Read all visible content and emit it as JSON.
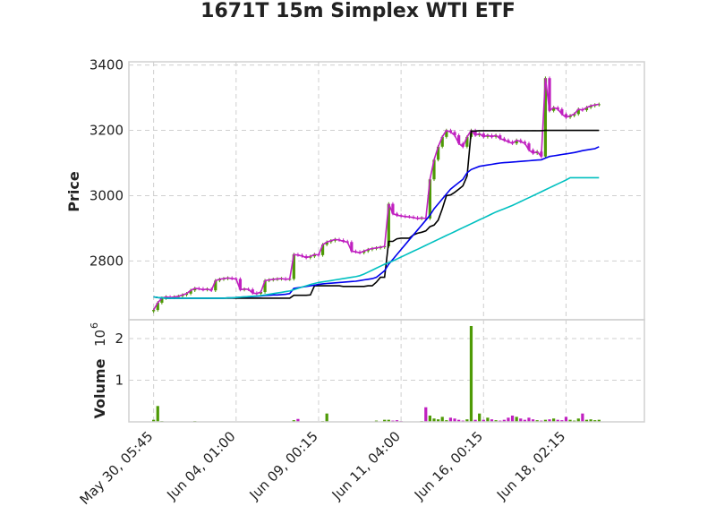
{
  "chart_data": {
    "type": "candlestick",
    "title": "1671T 15m Simplex WTI ETF",
    "price_axis": {
      "label": "Price",
      "ylim": [
        2620,
        3410
      ],
      "ticks": [
        2800,
        3000,
        3200,
        3400
      ],
      "tick_labels": [
        "2800",
        "3000",
        "3200",
        "3400"
      ]
    },
    "volume_axis": {
      "label": "Volume",
      "multiplier_label": "10",
      "multiplier_exponent": "6",
      "ylim": [
        0,
        2.45
      ],
      "ticks": [
        1,
        2
      ],
      "tick_labels": [
        "1",
        "2"
      ]
    },
    "x_ticks": [
      {
        "label": "May 30, 05:45",
        "index": 0
      },
      {
        "label": "Jun 04, 01:00",
        "index": 20
      },
      {
        "label": "Jun 09, 00:15",
        "index": 40
      },
      {
        "label": "Jun 11, 04:00",
        "index": 60
      },
      {
        "label": "Jun 16, 00:15",
        "index": 80
      },
      {
        "label": "Jun 18, 02:15",
        "index": 100
      }
    ],
    "x_range": [
      -6,
      119
    ],
    "close": [
      2650,
      2672,
      2686,
      2690,
      2688,
      2690,
      2692,
      2696,
      2700,
      2710,
      2716,
      2715,
      2712,
      2714,
      2710,
      2740,
      2744,
      2746,
      2748,
      2746,
      2745,
      2712,
      2714,
      2713,
      2702,
      2700,
      2705,
      2740,
      2742,
      2744,
      2745,
      2746,
      2744,
      2745,
      2820,
      2818,
      2815,
      2810,
      2814,
      2820,
      2818,
      2850,
      2858,
      2862,
      2866,
      2864,
      2860,
      2858,
      2830,
      2828,
      2825,
      2830,
      2835,
      2838,
      2840,
      2842,
      2845,
      2975,
      2945,
      2940,
      2938,
      2936,
      2935,
      2933,
      2930,
      2932,
      2930,
      3050,
      3110,
      3150,
      3180,
      3200,
      3195,
      3185,
      3160,
      3150,
      3180,
      3200,
      3185,
      3190,
      3180,
      3185,
      3180,
      3185,
      3175,
      3170,
      3165,
      3160,
      3170,
      3165,
      3160,
      3140,
      3130,
      3135,
      3120,
      3360,
      3260,
      3270,
      3265,
      3250,
      3240,
      3245,
      3250,
      3265,
      3262,
      3270,
      3275,
      3278,
      3280
    ],
    "volume": [
      0.05,
      0.38,
      0.02,
      0,
      0,
      0,
      0,
      0,
      0,
      0.01,
      0.02,
      0,
      0,
      0,
      0,
      0,
      0,
      0,
      0,
      0,
      0,
      0,
      0,
      0,
      0,
      0,
      0,
      0,
      0,
      0,
      0,
      0,
      0,
      0,
      0.04,
      0.07,
      0,
      0,
      0,
      0,
      0,
      0.02,
      0.2,
      0,
      0,
      0,
      0,
      0,
      0,
      0,
      0,
      0,
      0,
      0,
      0.03,
      0,
      0.05,
      0.05,
      0.03,
      0.04,
      0.02,
      0,
      0,
      0,
      0,
      0.02,
      0.35,
      0.15,
      0.08,
      0.06,
      0.12,
      0.04,
      0.1,
      0.08,
      0.05,
      0.03,
      0.06,
      2.3,
      0.05,
      0.2,
      0.05,
      0.1,
      0.06,
      0.04,
      0.03,
      0.05,
      0.1,
      0.15,
      0.12,
      0.08,
      0.05,
      0.1,
      0.06,
      0.04,
      0.03,
      0.05,
      0.06,
      0.08,
      0.05,
      0.04,
      0.12,
      0.05,
      0.03,
      0.08,
      0.2,
      0.05,
      0.06,
      0.04,
      0.05
    ],
    "moving_averages": [
      {
        "color": "#000000",
        "values": [
          2690,
          2688,
          2687,
          2686,
          2686,
          2686,
          2686,
          2686,
          2686,
          2686,
          2686,
          2686,
          2686,
          2686,
          2686,
          2686,
          2686,
          2686,
          2686,
          2686,
          2686,
          2686,
          2686,
          2686,
          2686,
          2686,
          2686,
          2686,
          2686,
          2686,
          2686,
          2686,
          2686,
          2686,
          2695,
          2695,
          2695,
          2695,
          2696,
          2724,
          2724,
          2724,
          2724,
          2724,
          2724,
          2724,
          2722,
          2722,
          2722,
          2722,
          2722,
          2722,
          2724,
          2724,
          2735,
          2750,
          2750,
          2860,
          2860,
          2868,
          2870,
          2870,
          2870,
          2880,
          2885,
          2888,
          2892,
          2905,
          2910,
          2925,
          2960,
          3000,
          3002,
          3010,
          3020,
          3030,
          3060,
          3198,
          3198,
          3199,
          3199,
          3199,
          3199,
          3199,
          3199,
          3199,
          3199,
          3199,
          3199,
          3199,
          3199,
          3199,
          3199,
          3199,
          3199,
          3200,
          3200,
          3200,
          3200,
          3200,
          3200,
          3200,
          3200,
          3200,
          3200,
          3200,
          3200,
          3200,
          3200
        ]
      },
      {
        "color": "#0000ee",
        "values": [
          2690,
          2688,
          2687,
          2686,
          2686,
          2686,
          2686,
          2686,
          2686,
          2686,
          2686,
          2686,
          2686,
          2686,
          2686,
          2686,
          2686,
          2686,
          2687,
          2687,
          2688,
          2689,
          2690,
          2690,
          2691,
          2692,
          2693,
          2694,
          2695,
          2696,
          2696,
          2697,
          2698,
          2700,
          2716,
          2718,
          2720,
          2722,
          2724,
          2726,
          2728,
          2730,
          2731,
          2732,
          2733,
          2734,
          2735,
          2736,
          2737,
          2738,
          2740,
          2742,
          2744,
          2746,
          2750,
          2760,
          2770,
          2790,
          2805,
          2820,
          2835,
          2850,
          2865,
          2880,
          2895,
          2910,
          2925,
          2940,
          2960,
          2975,
          2990,
          3005,
          3020,
          3030,
          3040,
          3050,
          3070,
          3080,
          3085,
          3090,
          3092,
          3094,
          3096,
          3098,
          3100,
          3101,
          3102,
          3103,
          3104,
          3105,
          3106,
          3107,
          3108,
          3109,
          3110,
          3115,
          3120,
          3122,
          3124,
          3126,
          3128,
          3130,
          3132,
          3135,
          3138,
          3140,
          3142,
          3144,
          3150
        ]
      },
      {
        "color": "#00c0c0",
        "values": [
          2690,
          2688,
          2687,
          2686,
          2686,
          2686,
          2686,
          2686,
          2686,
          2686,
          2686,
          2686,
          2686,
          2686,
          2686,
          2686,
          2686,
          2686,
          2687,
          2687,
          2688,
          2689,
          2690,
          2691,
          2692,
          2693,
          2694,
          2696,
          2698,
          2700,
          2702,
          2704,
          2706,
          2708,
          2712,
          2716,
          2720,
          2724,
          2728,
          2731,
          2734,
          2736,
          2738,
          2740,
          2742,
          2744,
          2746,
          2748,
          2750,
          2752,
          2755,
          2760,
          2766,
          2772,
          2778,
          2784,
          2790,
          2795,
          2800,
          2806,
          2812,
          2818,
          2824,
          2830,
          2836,
          2842,
          2848,
          2854,
          2860,
          2866,
          2872,
          2878,
          2884,
          2890,
          2896,
          2902,
          2908,
          2914,
          2920,
          2926,
          2932,
          2938,
          2944,
          2950,
          2955,
          2960,
          2965,
          2970,
          2976,
          2982,
          2988,
          2994,
          3000,
          3006,
          3012,
          3018,
          3024,
          3030,
          3036,
          3042,
          3048,
          3055,
          3055,
          3055,
          3055,
          3055,
          3055,
          3055,
          3055
        ]
      }
    ],
    "colors": {
      "up": "#4e9a06",
      "down": "#c020c0",
      "grid": "#cfcfcf",
      "frame": "#d0d0d0",
      "text": "#222222"
    },
    "grid": true
  }
}
